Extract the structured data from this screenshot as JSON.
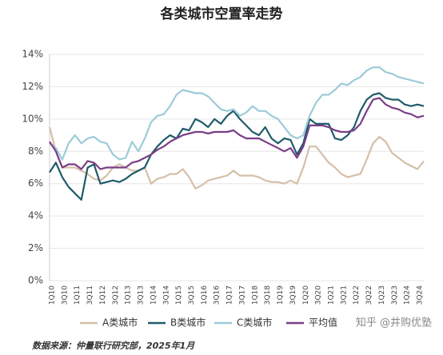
{
  "chart_data": {
    "type": "line",
    "title": "各类城市空置率走势",
    "source": "数据来源：仲量联行研究部，2025年1月",
    "watermark": "知乎 @井购优塾",
    "categories": [
      "1Q10",
      null,
      "3Q10",
      null,
      "1Q11",
      null,
      "3Q11",
      null,
      "1Q12",
      null,
      "3Q12",
      null,
      "1Q13",
      null,
      "3Q13",
      null,
      "1Q14",
      null,
      "3Q14",
      null,
      "1Q15",
      null,
      "3Q15",
      null,
      "1Q16",
      null,
      "3Q16",
      null,
      "1Q17",
      null,
      "3Q17",
      null,
      "1Q18",
      null,
      "3Q18",
      null,
      "1Q19",
      null,
      "3Q19",
      null,
      "1Q20",
      null,
      "3Q20",
      null,
      "1Q21",
      null,
      "3Q21",
      null,
      "1Q22",
      null,
      "3Q22",
      null,
      "1Q23",
      null,
      "3Q23",
      null,
      "1Q24",
      null,
      "3Q24",
      null
    ],
    "series": [
      {
        "name": "A类城市",
        "color": "#d6bfa8",
        "values": [
          9.5,
          8,
          7,
          7,
          7,
          6.8,
          6.6,
          6.3,
          6.2,
          6.5,
          7.0,
          7.2,
          7.0,
          6.8,
          6.8,
          7.0,
          6.0,
          6.3,
          6.4,
          6.6,
          6.6,
          6.9,
          6.4,
          5.7,
          5.9,
          6.2,
          6.3,
          6.4,
          6.5,
          6.8,
          6.5,
          6.5,
          6.5,
          6.4,
          6.2,
          6.1,
          6.1,
          6.0,
          6.2,
          6.0,
          7.0,
          8.3,
          8.3,
          7.8,
          7.3,
          7.0,
          6.6,
          6.4,
          6.5,
          6.6,
          7.5,
          8.5,
          8.9,
          8.6,
          7.9,
          7.6,
          7.3,
          7.1,
          6.9,
          7.4
        ]
      },
      {
        "name": "B类城市",
        "color": "#1f5c6b",
        "values": [
          6.7,
          7.3,
          6.4,
          5.8,
          5.4,
          5.0,
          7.0,
          7.2,
          6.0,
          6.1,
          6.2,
          6.1,
          6.3,
          6.6,
          6.8,
          7.0,
          7.8,
          8.3,
          8.7,
          9.0,
          8.8,
          9.4,
          9.3,
          10.0,
          9.8,
          9.5,
          10.0,
          9.7,
          10.2,
          10.5,
          10.0,
          9.6,
          9.2,
          9.0,
          9.5,
          8.8,
          8.5,
          8.8,
          8.7,
          7.8,
          8.5,
          10.0,
          9.7,
          9.7,
          9.7,
          8.8,
          8.7,
          9.0,
          9.5,
          10.5,
          11.2,
          11.5,
          11.6,
          11.3,
          11.2,
          11.2,
          10.9,
          10.8,
          10.9,
          10.8
        ]
      },
      {
        "name": "C类城市",
        "color": "#9ccbd9",
        "values": [
          8.5,
          8.2,
          7.5,
          8.5,
          9.0,
          8.5,
          8.8,
          8.9,
          8.6,
          8.5,
          7.8,
          7.5,
          7.6,
          8.6,
          8.0,
          8.8,
          9.8,
          10.2,
          10.3,
          10.8,
          11.5,
          11.8,
          11.7,
          11.6,
          11.6,
          11.4,
          11.0,
          10.6,
          10.5,
          10.6,
          10.2,
          10.4,
          10.8,
          10.5,
          10.5,
          10.2,
          10.0,
          9.5,
          9.0,
          8.8,
          9.0,
          10.2,
          11.0,
          11.5,
          11.5,
          11.8,
          12.2,
          12.1,
          12.4,
          12.6,
          13.0,
          13.2,
          13.2,
          12.9,
          12.8,
          12.6,
          12.5,
          12.4,
          12.3,
          12.2
        ]
      },
      {
        "name": "平均值",
        "color": "#7a3d87",
        "values": [
          8.6,
          8.0,
          7.0,
          7.2,
          7.2,
          6.9,
          7.4,
          7.3,
          6.9,
          7.0,
          7.0,
          7.0,
          7.0,
          7.3,
          7.4,
          7.6,
          7.8,
          8.1,
          8.3,
          8.6,
          8.8,
          9.0,
          9.1,
          9.2,
          9.2,
          9.1,
          9.2,
          9.2,
          9.2,
          9.3,
          9.0,
          8.8,
          8.8,
          8.8,
          8.6,
          8.4,
          8.2,
          8.0,
          8.2,
          7.6,
          8.3,
          9.6,
          9.6,
          9.6,
          9.5,
          9.3,
          9.2,
          9.2,
          9.3,
          9.7,
          10.5,
          11.2,
          11.3,
          10.9,
          10.7,
          10.6,
          10.4,
          10.3,
          10.1,
          10.2
        ]
      }
    ],
    "ylim": [
      0,
      14
    ],
    "yticks": [
      {
        "value": 0,
        "label": "0%"
      },
      {
        "value": 2,
        "label": "2%"
      },
      {
        "value": 4,
        "label": "4%"
      },
      {
        "value": 6,
        "label": "6%"
      },
      {
        "value": 8,
        "label": "8%"
      },
      {
        "value": 10,
        "label": "10%"
      },
      {
        "value": 12,
        "label": "12%"
      },
      {
        "value": 14,
        "label": "14%"
      }
    ],
    "grid": true
  }
}
